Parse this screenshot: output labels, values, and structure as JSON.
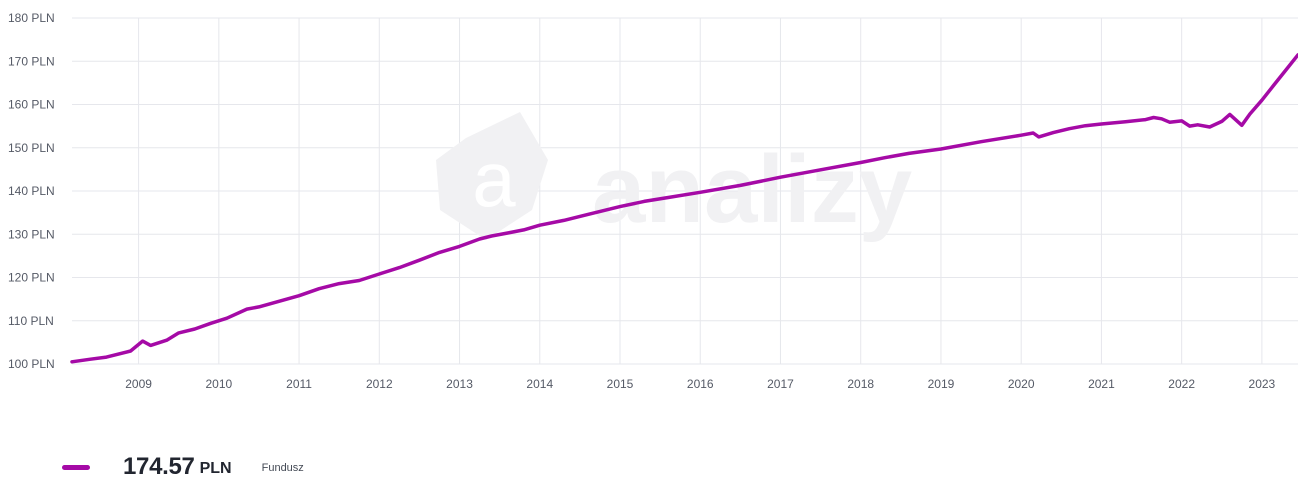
{
  "chart_data": {
    "type": "line",
    "y_ticks": [
      "100 PLN",
      "110 PLN",
      "120 PLN",
      "130 PLN",
      "140 PLN",
      "150 PLN",
      "160 PLN",
      "170 PLN",
      "180 PLN"
    ],
    "y_tick_values": [
      100,
      110,
      120,
      130,
      140,
      150,
      160,
      170,
      180
    ],
    "x_ticks": [
      "2009",
      "2010",
      "2011",
      "2012",
      "2013",
      "2014",
      "2015",
      "2016",
      "2017",
      "2018",
      "2019",
      "2020",
      "2021",
      "2022",
      "2023"
    ],
    "x_tick_values": [
      2009,
      2010,
      2011,
      2012,
      2013,
      2014,
      2015,
      2016,
      2017,
      2018,
      2019,
      2020,
      2021,
      2022,
      2023
    ],
    "xlim": [
      2008.17,
      2023.45
    ],
    "ylim": [
      100,
      180
    ],
    "grid": true,
    "series": [
      {
        "x": [
          2008.17,
          2008.4,
          2008.6,
          2008.9,
          2009.05,
          2009.15,
          2009.35,
          2009.5,
          2009.7,
          2009.9,
          2010.1,
          2010.35,
          2010.5,
          2010.75,
          2011.0,
          2011.25,
          2011.5,
          2011.75,
          2012.0,
          2012.25,
          2012.5,
          2012.75,
          2013.0,
          2013.25,
          2013.4,
          2013.6,
          2013.8,
          2014.0,
          2014.3,
          2014.6,
          2015.0,
          2015.3,
          2015.6,
          2016.0,
          2016.5,
          2017.0,
          2017.5,
          2018.0,
          2018.3,
          2018.6,
          2019.0,
          2019.5,
          2020.0,
          2020.15,
          2020.22,
          2020.4,
          2020.6,
          2020.8,
          2021.0,
          2021.3,
          2021.55,
          2021.65,
          2021.75,
          2021.85,
          2022.0,
          2022.1,
          2022.2,
          2022.35,
          2022.5,
          2022.6,
          2022.75,
          2022.85,
          2023.0,
          2023.15,
          2023.3,
          2023.45
        ],
        "values": [
          100.5,
          101.1,
          101.6,
          103.0,
          105.3,
          104.3,
          105.5,
          107.2,
          108.1,
          109.4,
          110.6,
          112.7,
          113.2,
          114.5,
          115.8,
          117.4,
          118.6,
          119.3,
          120.8,
          122.3,
          124.0,
          125.8,
          127.2,
          128.9,
          129.6,
          130.3,
          131.0,
          132.1,
          133.2,
          134.6,
          136.4,
          137.6,
          138.5,
          139.7,
          141.3,
          143.2,
          144.9,
          146.6,
          147.7,
          148.7,
          149.7,
          151.4,
          152.9,
          153.4,
          152.5,
          153.5,
          154.4,
          155.1,
          155.5,
          156.0,
          156.5,
          157.0,
          156.7,
          155.9,
          156.2,
          155.0,
          155.3,
          154.8,
          156.1,
          157.7,
          155.2,
          157.8,
          161.0,
          164.5,
          168.0,
          171.5
        ],
        "color": "#a50aa6"
      }
    ]
  },
  "legend": {
    "value": "174.57",
    "unit": "PLN",
    "name": "Fundusz",
    "color": "#a50aa6"
  },
  "watermark": {
    "text": "analizy",
    "badge": "a",
    "color": "#f1f1f3"
  }
}
